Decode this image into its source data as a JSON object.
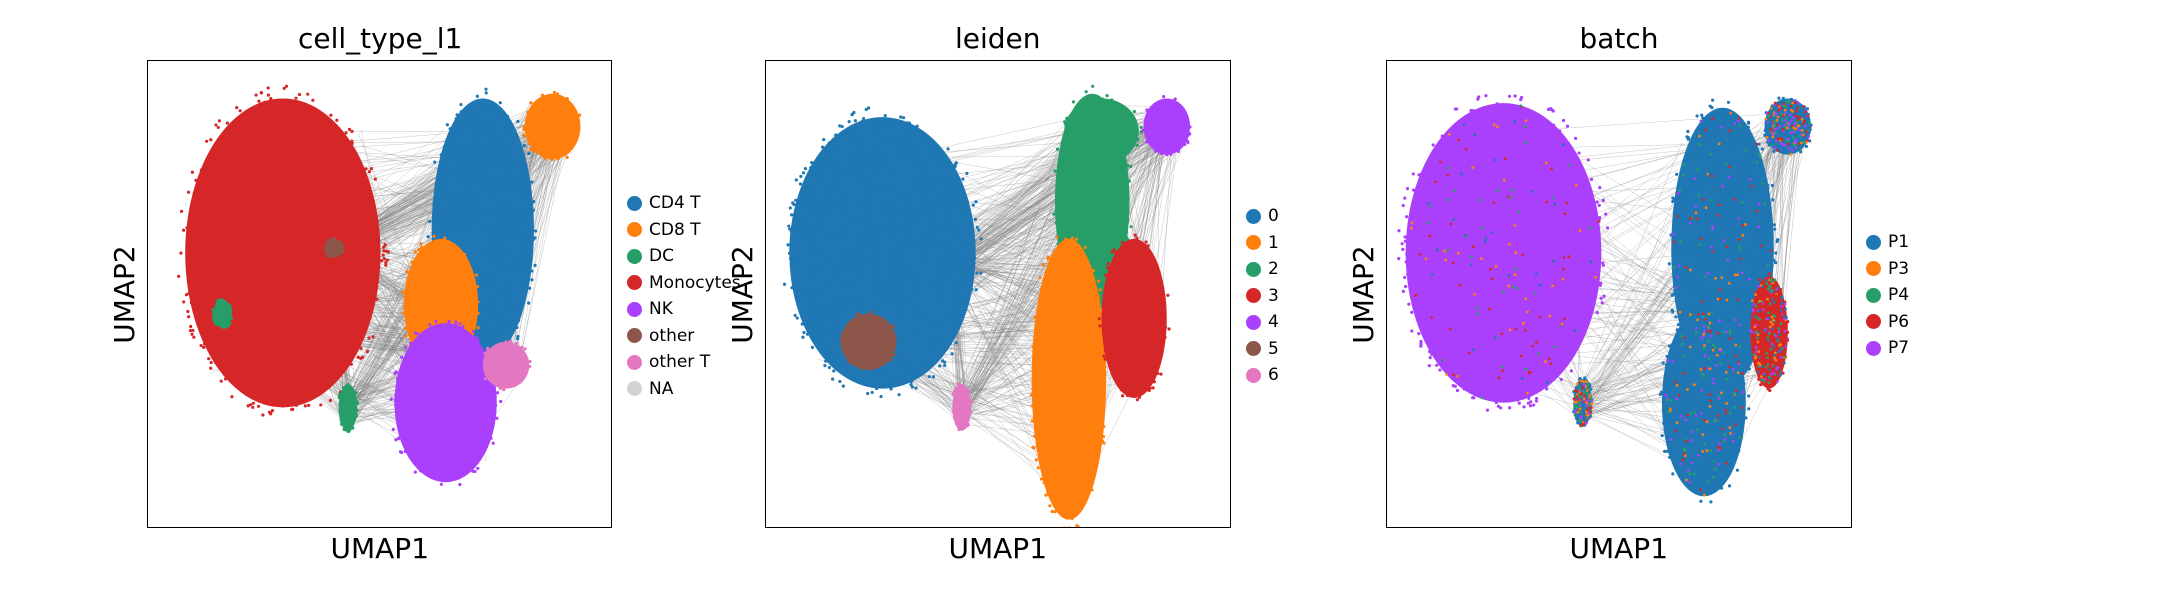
{
  "chart_data": [
    {
      "type": "scatter",
      "title": "cell_type_l1",
      "xlabel": "UMAP1",
      "ylabel": "UMAP2",
      "legend_position": "right",
      "grid": false,
      "has_paga_edges": true,
      "series": [
        {
          "name": "CD4 T",
          "color": "#1f77b4"
        },
        {
          "name": "CD8 T",
          "color": "#ff7f0e"
        },
        {
          "name": "DC",
          "color": "#279e68"
        },
        {
          "name": "Monocytes",
          "color": "#d62728"
        },
        {
          "name": "NK",
          "color": "#aa40fc"
        },
        {
          "name": "other",
          "color": "#8c564b"
        },
        {
          "name": "other T",
          "color": "#e377c2"
        },
        {
          "name": "NA",
          "color": "#d3d3d3"
        }
      ],
      "regions": [
        {
          "series": "Monocytes",
          "cx": 0.29,
          "cy": 0.59,
          "rx": 0.21,
          "ry": 0.33
        },
        {
          "series": "CD4 T",
          "cx": 0.72,
          "cy": 0.64,
          "rx": 0.11,
          "ry": 0.28
        },
        {
          "series": "CD4 T",
          "cx": 0.7,
          "cy": 0.77,
          "rx": 0.07,
          "ry": 0.1
        },
        {
          "series": "CD8 T",
          "cx": 0.87,
          "cy": 0.86,
          "rx": 0.06,
          "ry": 0.07
        },
        {
          "series": "CD8 T",
          "cx": 0.63,
          "cy": 0.48,
          "rx": 0.08,
          "ry": 0.14
        },
        {
          "series": "NK",
          "cx": 0.64,
          "cy": 0.27,
          "rx": 0.11,
          "ry": 0.17
        },
        {
          "series": "other T",
          "cx": 0.77,
          "cy": 0.35,
          "rx": 0.05,
          "ry": 0.05
        },
        {
          "series": "DC",
          "cx": 0.43,
          "cy": 0.26,
          "rx": 0.02,
          "ry": 0.05
        },
        {
          "series": "DC",
          "cx": 0.16,
          "cy": 0.46,
          "rx": 0.02,
          "ry": 0.03
        },
        {
          "series": "other",
          "cx": 0.4,
          "cy": 0.6,
          "rx": 0.02,
          "ry": 0.02
        }
      ]
    },
    {
      "type": "scatter",
      "title": "leiden",
      "xlabel": "UMAP1",
      "ylabel": "UMAP2",
      "legend_position": "right",
      "grid": false,
      "has_paga_edges": true,
      "series": [
        {
          "name": "0",
          "color": "#1f77b4"
        },
        {
          "name": "1",
          "color": "#ff7f0e"
        },
        {
          "name": "2",
          "color": "#279e68"
        },
        {
          "name": "3",
          "color": "#d62728"
        },
        {
          "name": "4",
          "color": "#aa40fc"
        },
        {
          "name": "5",
          "color": "#8c564b"
        },
        {
          "name": "6",
          "color": "#e377c2"
        }
      ],
      "regions": [
        {
          "series": "0",
          "cx": 0.25,
          "cy": 0.59,
          "rx": 0.2,
          "ry": 0.29
        },
        {
          "series": "5",
          "cx": 0.22,
          "cy": 0.4,
          "rx": 0.06,
          "ry": 0.06
        },
        {
          "series": "2",
          "cx": 0.7,
          "cy": 0.7,
          "rx": 0.08,
          "ry": 0.23
        },
        {
          "series": "2",
          "cx": 0.72,
          "cy": 0.85,
          "rx": 0.08,
          "ry": 0.07
        },
        {
          "series": "4",
          "cx": 0.86,
          "cy": 0.86,
          "rx": 0.05,
          "ry": 0.06
        },
        {
          "series": "1",
          "cx": 0.65,
          "cy": 0.32,
          "rx": 0.08,
          "ry": 0.3
        },
        {
          "series": "3",
          "cx": 0.79,
          "cy": 0.45,
          "rx": 0.07,
          "ry": 0.17
        },
        {
          "series": "6",
          "cx": 0.42,
          "cy": 0.26,
          "rx": 0.02,
          "ry": 0.05
        },
        {
          "series": "0",
          "cx": 0.4,
          "cy": 0.57,
          "rx": 0.02,
          "ry": 0.02
        }
      ]
    },
    {
      "type": "scatter",
      "title": "batch",
      "xlabel": "UMAP1",
      "ylabel": "UMAP2",
      "legend_position": "right",
      "grid": false,
      "has_paga_edges": true,
      "series": [
        {
          "name": "P1",
          "color": "#1f77b4"
        },
        {
          "name": "P3",
          "color": "#ff7f0e"
        },
        {
          "name": "P4",
          "color": "#279e68"
        },
        {
          "name": "P6",
          "color": "#d62728"
        },
        {
          "name": "P7",
          "color": "#aa40fc"
        }
      ],
      "regions": [
        {
          "series": "P7",
          "cx": 0.25,
          "cy": 0.59,
          "rx": 0.21,
          "ry": 0.32
        },
        {
          "series": "P1",
          "cx": 0.72,
          "cy": 0.6,
          "rx": 0.11,
          "ry": 0.3
        },
        {
          "series": "P1",
          "cx": 0.68,
          "cy": 0.27,
          "rx": 0.09,
          "ry": 0.2
        },
        {
          "series": "P1",
          "cx": 0.86,
          "cy": 0.86,
          "rx": 0.05,
          "ry": 0.06
        },
        {
          "series": "P6",
          "cx": 0.82,
          "cy": 0.42,
          "rx": 0.04,
          "ry": 0.12
        },
        {
          "series": "P1",
          "cx": 0.42,
          "cy": 0.27,
          "rx": 0.02,
          "ry": 0.05
        }
      ]
    }
  ]
}
